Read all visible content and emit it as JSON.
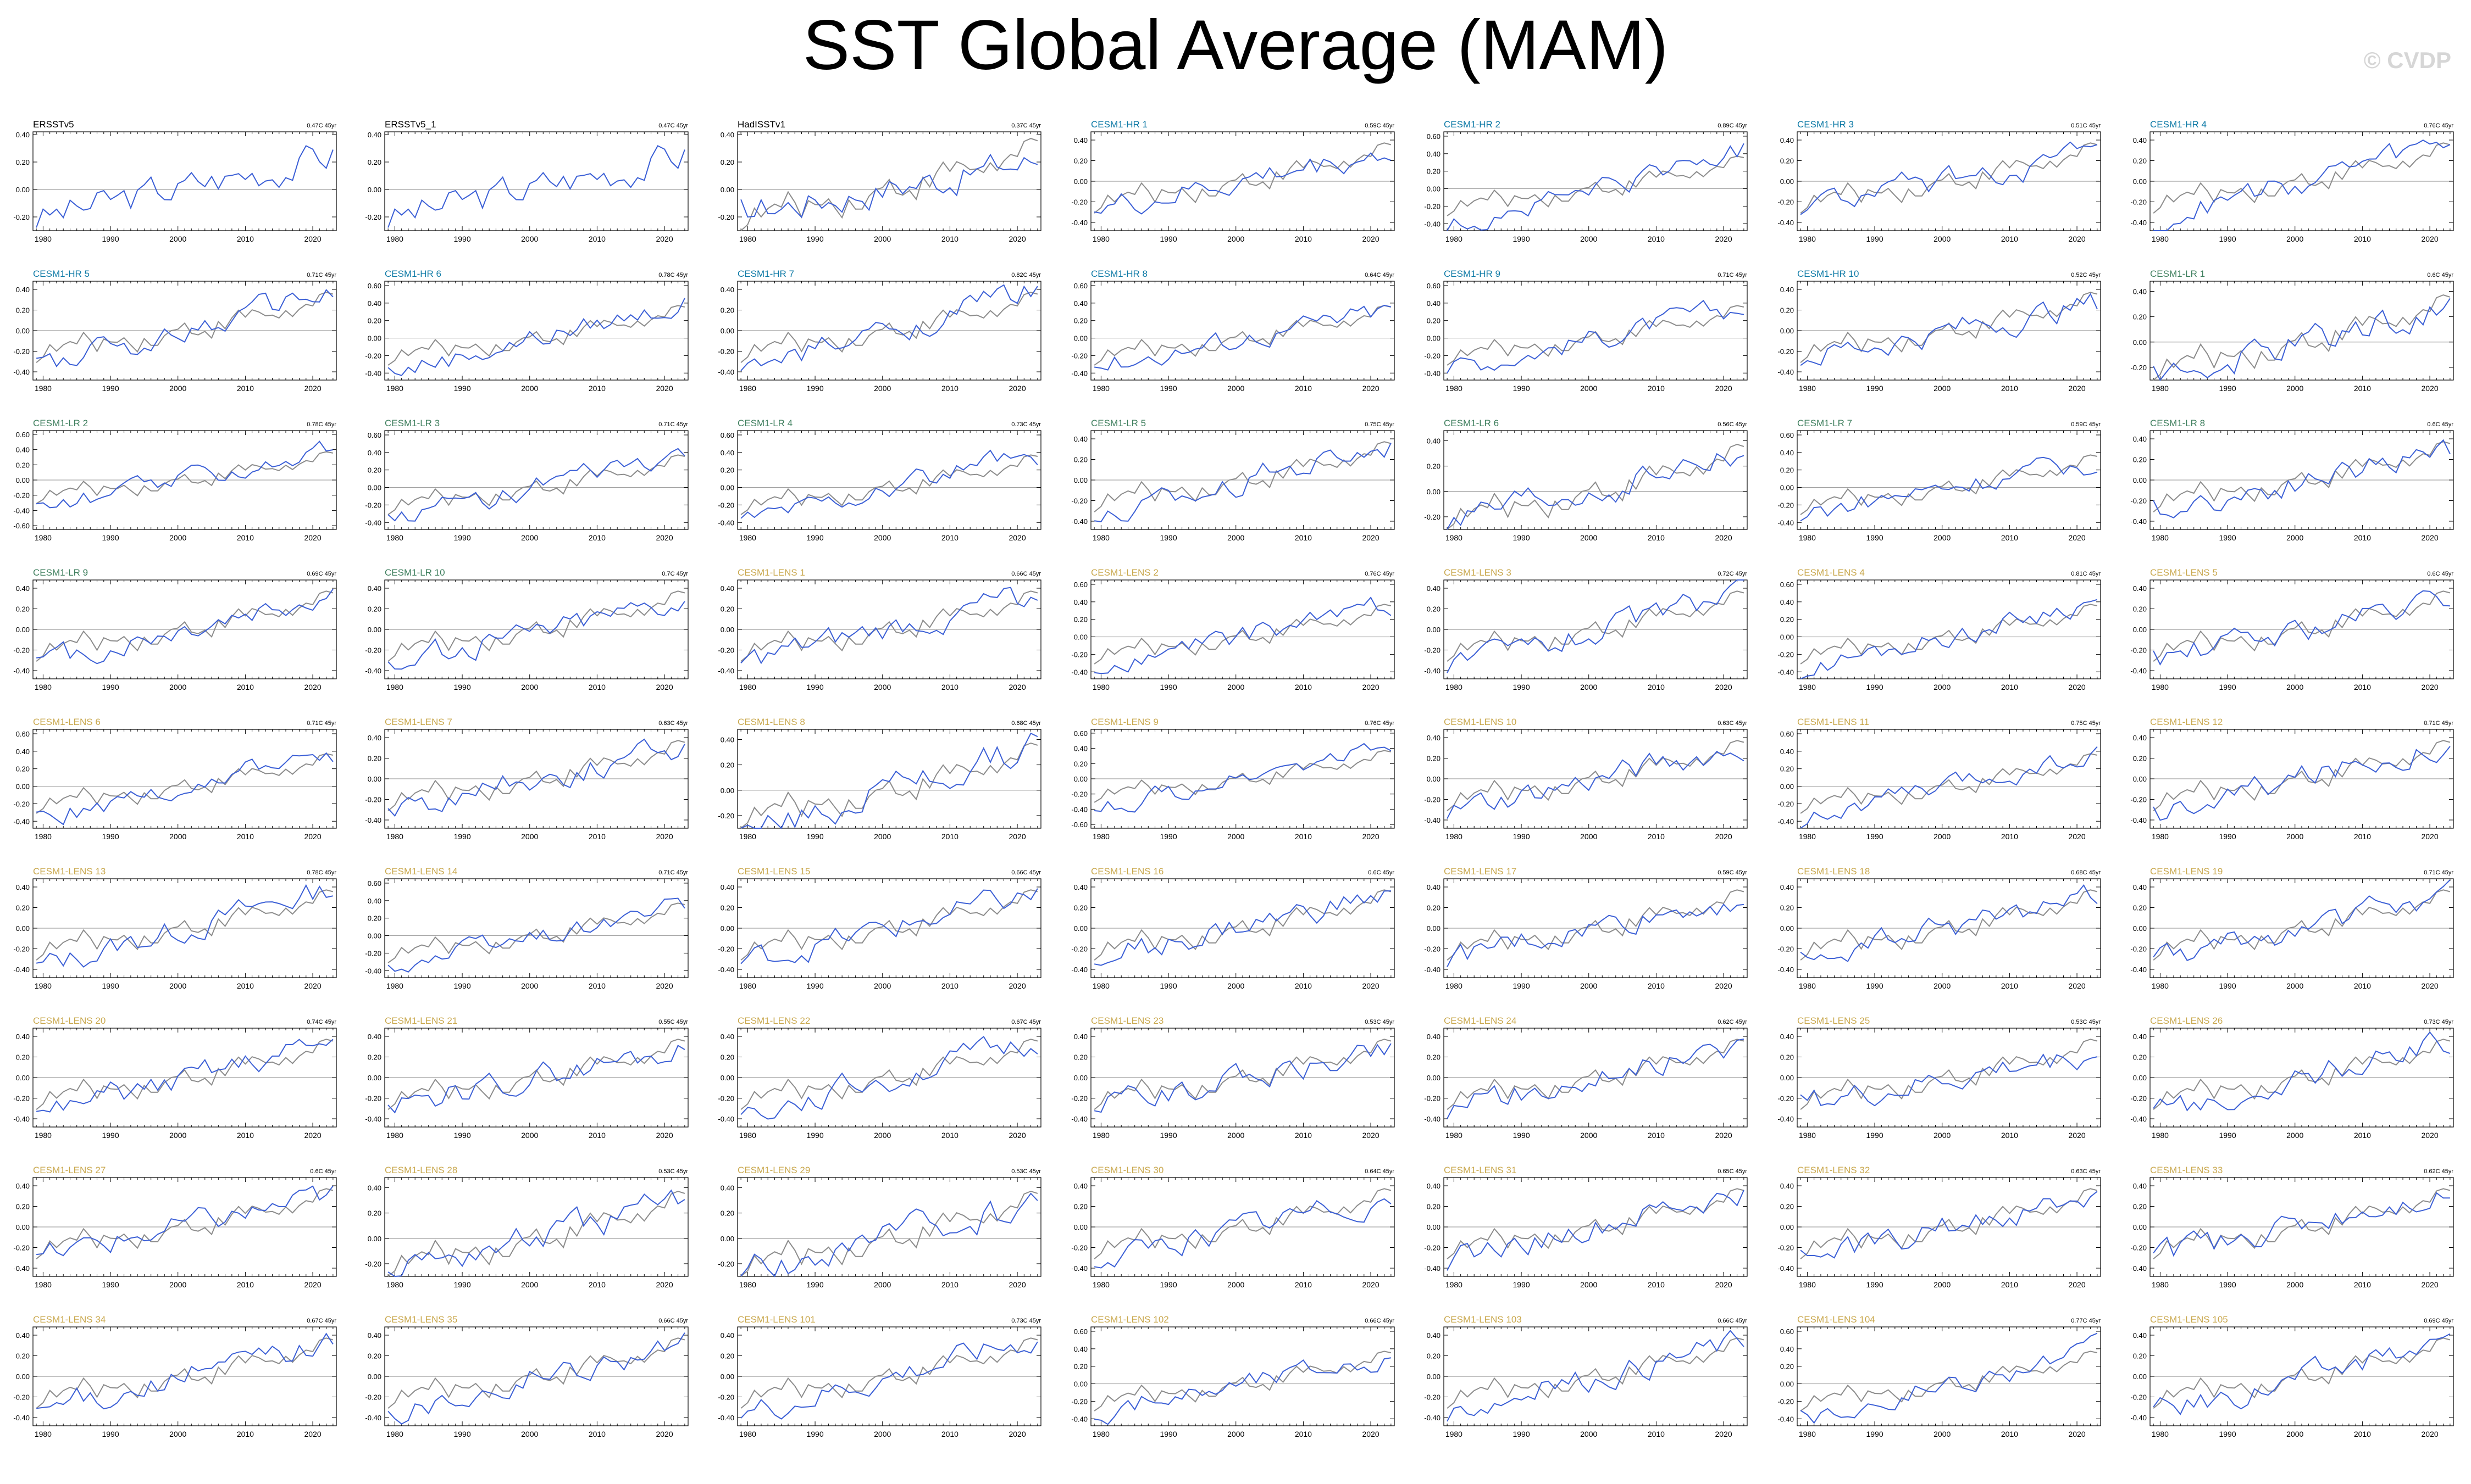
{
  "title": "SST Global Average (MAM)",
  "watermark": "© CVDP",
  "colors": {
    "model": "#3b5fd6",
    "obs": "#8c8c8c",
    "black": "#000000",
    "hr": "#0e7aa6",
    "lr": "#3f7f5e",
    "lens": "#c9a84e"
  },
  "chart_data": {
    "type": "line",
    "years": [
      1979,
      2023
    ],
    "x_ticks": [
      1980,
      1990,
      2000,
      2010,
      2020
    ],
    "panels": [
      {
        "name": "ERSSTv5",
        "trend": "0.47C 45yr",
        "ylim": [
          -0.3,
          0.42
        ],
        "yticks": [
          -0.2,
          0,
          0.2,
          0.4
        ],
        "group": "obs"
      },
      {
        "name": "ERSSTv5_1",
        "trend": "0.47C 45yr",
        "ylim": [
          -0.3,
          0.42
        ],
        "yticks": [
          -0.2,
          0,
          0.2,
          0.4
        ],
        "group": "obs"
      },
      {
        "name": "HadISSTv1",
        "trend": "0.37C 45yr",
        "ylim": [
          -0.3,
          0.42
        ],
        "yticks": [
          -0.2,
          0,
          0.2,
          0.4
        ],
        "group": "obs"
      },
      {
        "name": "CESM1-HR 1",
        "trend": "0.59C 45yr",
        "ylim": [
          -0.48,
          0.48
        ],
        "yticks": [
          -0.4,
          -0.2,
          0,
          0.2,
          0.4
        ],
        "group": "hr"
      },
      {
        "name": "CESM1-HR 2",
        "trend": "0.89C 45yr",
        "ylim": [
          -0.48,
          0.65
        ],
        "yticks": [
          -0.4,
          -0.2,
          0,
          0.2,
          0.4,
          0.6
        ],
        "group": "hr"
      },
      {
        "name": "CESM1-HR 3",
        "trend": "0.51C 45yr",
        "ylim": [
          -0.48,
          0.48
        ],
        "yticks": [
          -0.4,
          -0.2,
          0,
          0.2,
          0.4
        ],
        "group": "hr"
      },
      {
        "name": "CESM1-HR 4",
        "trend": "0.76C 45yr",
        "ylim": [
          -0.48,
          0.48
        ],
        "yticks": [
          -0.4,
          -0.2,
          0,
          0.2,
          0.4
        ],
        "group": "hr"
      },
      {
        "name": "CESM1-HR 5",
        "trend": "0.71C 45yr",
        "ylim": [
          -0.48,
          0.48
        ],
        "yticks": [
          -0.4,
          -0.2,
          0,
          0.2,
          0.4
        ],
        "group": "hr"
      },
      {
        "name": "CESM1-HR 6",
        "trend": "0.78C 45yr",
        "ylim": [
          -0.48,
          0.65
        ],
        "yticks": [
          -0.4,
          -0.2,
          0,
          0.2,
          0.4,
          0.6
        ],
        "group": "hr"
      },
      {
        "name": "CESM1-HR 7",
        "trend": "0.82C 45yr",
        "ylim": [
          -0.48,
          0.48
        ],
        "yticks": [
          -0.4,
          -0.2,
          0,
          0.2,
          0.4
        ],
        "group": "hr"
      },
      {
        "name": "CESM1-HR 8",
        "trend": "0.64C 45yr",
        "ylim": [
          -0.48,
          0.65
        ],
        "yticks": [
          -0.4,
          -0.2,
          0,
          0.2,
          0.4,
          0.6
        ],
        "group": "hr"
      },
      {
        "name": "CESM1-HR 9",
        "trend": "0.71C 45yr",
        "ylim": [
          -0.48,
          0.65
        ],
        "yticks": [
          -0.4,
          -0.2,
          0,
          0.2,
          0.4,
          0.6
        ],
        "group": "hr"
      },
      {
        "name": "CESM1-HR 10",
        "trend": "0.52C 45yr",
        "ylim": [
          -0.48,
          0.48
        ],
        "yticks": [
          -0.4,
          -0.2,
          0,
          0.2,
          0.4
        ],
        "group": "hr"
      },
      {
        "name": "CESM1-LR 1",
        "trend": "0.6C 45yr",
        "ylim": [
          -0.3,
          0.48
        ],
        "yticks": [
          -0.2,
          0,
          0.2,
          0.4
        ],
        "group": "lr"
      },
      {
        "name": "CESM1-LR 2",
        "trend": "0.78C 45yr",
        "ylim": [
          -0.65,
          0.65
        ],
        "yticks": [
          -0.6,
          -0.4,
          -0.2,
          0,
          0.2,
          0.4,
          0.6
        ],
        "group": "lr"
      },
      {
        "name": "CESM1-LR 3",
        "trend": "0.71C 45yr",
        "ylim": [
          -0.48,
          0.65
        ],
        "yticks": [
          -0.4,
          -0.2,
          0,
          0.2,
          0.4,
          0.6
        ],
        "group": "lr"
      },
      {
        "name": "CESM1-LR 4",
        "trend": "0.73C 45yr",
        "ylim": [
          -0.48,
          0.65
        ],
        "yticks": [
          -0.4,
          -0.2,
          0,
          0.2,
          0.4,
          0.6
        ],
        "group": "lr"
      },
      {
        "name": "CESM1-LR 5",
        "trend": "0.75C 45yr",
        "ylim": [
          -0.48,
          0.48
        ],
        "yticks": [
          -0.4,
          -0.2,
          0,
          0.2,
          0.4
        ],
        "group": "lr"
      },
      {
        "name": "CESM1-LR 6",
        "trend": "0.56C 45yr",
        "ylim": [
          -0.3,
          0.48
        ],
        "yticks": [
          -0.2,
          0,
          0.2,
          0.4
        ],
        "group": "lr"
      },
      {
        "name": "CESM1-LR 7",
        "trend": "0.59C 45yr",
        "ylim": [
          -0.48,
          0.65
        ],
        "yticks": [
          -0.4,
          -0.2,
          0,
          0.2,
          0.4,
          0.6
        ],
        "group": "lr"
      },
      {
        "name": "CESM1-LR 8",
        "trend": "0.6C 45yr",
        "ylim": [
          -0.48,
          0.48
        ],
        "yticks": [
          -0.4,
          -0.2,
          0,
          0.2,
          0.4
        ],
        "group": "lr"
      },
      {
        "name": "CESM1-LR 9",
        "trend": "0.69C 45yr",
        "ylim": [
          -0.48,
          0.48
        ],
        "yticks": [
          -0.4,
          -0.2,
          0,
          0.2,
          0.4
        ],
        "group": "lr"
      },
      {
        "name": "CESM1-LR 10",
        "trend": "0.7C 45yr",
        "ylim": [
          -0.48,
          0.48
        ],
        "yticks": [
          -0.4,
          -0.2,
          0,
          0.2,
          0.4
        ],
        "group": "lr"
      },
      {
        "name": "CESM1-LENS 1",
        "trend": "0.66C 45yr",
        "ylim": [
          -0.48,
          0.48
        ],
        "yticks": [
          -0.4,
          -0.2,
          0,
          0.2,
          0.4
        ],
        "group": "lens"
      },
      {
        "name": "CESM1-LENS 2",
        "trend": "0.76C 45yr",
        "ylim": [
          -0.48,
          0.65
        ],
        "yticks": [
          -0.4,
          -0.2,
          0,
          0.2,
          0.4,
          0.6
        ],
        "group": "lens"
      },
      {
        "name": "CESM1-LENS 3",
        "trend": "0.72C 45yr",
        "ylim": [
          -0.48,
          0.48
        ],
        "yticks": [
          -0.4,
          -0.2,
          0,
          0.2,
          0.4
        ],
        "group": "lens"
      },
      {
        "name": "CESM1-LENS 4",
        "trend": "0.81C 45yr",
        "ylim": [
          -0.48,
          0.65
        ],
        "yticks": [
          -0.4,
          -0.2,
          0,
          0.2,
          0.4,
          0.6
        ],
        "group": "lens"
      },
      {
        "name": "CESM1-LENS 5",
        "trend": "0.6C 45yr",
        "ylim": [
          -0.48,
          0.48
        ],
        "yticks": [
          -0.4,
          -0.2,
          0,
          0.2,
          0.4
        ],
        "group": "lens"
      },
      {
        "name": "CESM1-LENS 6",
        "trend": "0.71C 45yr",
        "ylim": [
          -0.48,
          0.65
        ],
        "yticks": [
          -0.4,
          -0.2,
          0,
          0.2,
          0.4,
          0.6
        ],
        "group": "lens"
      },
      {
        "name": "CESM1-LENS 7",
        "trend": "0.63C 45yr",
        "ylim": [
          -0.48,
          0.48
        ],
        "yticks": [
          -0.4,
          -0.2,
          0,
          0.2,
          0.4
        ],
        "group": "lens"
      },
      {
        "name": "CESM1-LENS 8",
        "trend": "0.68C 45yr",
        "ylim": [
          -0.3,
          0.48
        ],
        "yticks": [
          -0.2,
          0,
          0.2,
          0.4
        ],
        "group": "lens"
      },
      {
        "name": "CESM1-LENS 9",
        "trend": "0.76C 45yr",
        "ylim": [
          -0.65,
          0.65
        ],
        "yticks": [
          -0.6,
          -0.4,
          -0.2,
          0,
          0.2,
          0.4,
          0.6
        ],
        "group": "lens"
      },
      {
        "name": "CESM1-LENS 10",
        "trend": "0.63C 45yr",
        "ylim": [
          -0.48,
          0.48
        ],
        "yticks": [
          -0.4,
          -0.2,
          0,
          0.2,
          0.4
        ],
        "group": "lens"
      },
      {
        "name": "CESM1-LENS 11",
        "trend": "0.75C 45yr",
        "ylim": [
          -0.48,
          0.65
        ],
        "yticks": [
          -0.4,
          -0.2,
          0,
          0.2,
          0.4,
          0.6
        ],
        "group": "lens"
      },
      {
        "name": "CESM1-LENS 12",
        "trend": "0.71C 45yr",
        "ylim": [
          -0.48,
          0.48
        ],
        "yticks": [
          -0.4,
          -0.2,
          0,
          0.2,
          0.4
        ],
        "group": "lens"
      },
      {
        "name": "CESM1-LENS 13",
        "trend": "0.78C 45yr",
        "ylim": [
          -0.48,
          0.48
        ],
        "yticks": [
          -0.4,
          -0.2,
          0,
          0.2,
          0.4
        ],
        "group": "lens"
      },
      {
        "name": "CESM1-LENS 14",
        "trend": "0.71C 45yr",
        "ylim": [
          -0.48,
          0.65
        ],
        "yticks": [
          -0.4,
          -0.2,
          0,
          0.2,
          0.4,
          0.6
        ],
        "group": "lens"
      },
      {
        "name": "CESM1-LENS 15",
        "trend": "0.66C 45yr",
        "ylim": [
          -0.48,
          0.48
        ],
        "yticks": [
          -0.4,
          -0.2,
          0,
          0.2,
          0.4
        ],
        "group": "lens"
      },
      {
        "name": "CESM1-LENS 16",
        "trend": "0.6C 45yr",
        "ylim": [
          -0.48,
          0.48
        ],
        "yticks": [
          -0.4,
          -0.2,
          0,
          0.2,
          0.4
        ],
        "group": "lens"
      },
      {
        "name": "CESM1-LENS 17",
        "trend": "0.59C 45yr",
        "ylim": [
          -0.48,
          0.48
        ],
        "yticks": [
          -0.4,
          -0.2,
          0,
          0.2,
          0.4
        ],
        "group": "lens"
      },
      {
        "name": "CESM1-LENS 18",
        "trend": "0.68C 45yr",
        "ylim": [
          -0.48,
          0.48
        ],
        "yticks": [
          -0.4,
          -0.2,
          0,
          0.2,
          0.4
        ],
        "group": "lens"
      },
      {
        "name": "CESM1-LENS 19",
        "trend": "0.71C 45yr",
        "ylim": [
          -0.48,
          0.48
        ],
        "yticks": [
          -0.4,
          -0.2,
          0,
          0.2,
          0.4
        ],
        "group": "lens"
      },
      {
        "name": "CESM1-LENS 20",
        "trend": "0.74C 45yr",
        "ylim": [
          -0.48,
          0.48
        ],
        "yticks": [
          -0.4,
          -0.2,
          0,
          0.2,
          0.4
        ],
        "group": "lens"
      },
      {
        "name": "CESM1-LENS 21",
        "trend": "0.55C 45yr",
        "ylim": [
          -0.48,
          0.48
        ],
        "yticks": [
          -0.4,
          -0.2,
          0,
          0.2,
          0.4
        ],
        "group": "lens"
      },
      {
        "name": "CESM1-LENS 22",
        "trend": "0.67C 45yr",
        "ylim": [
          -0.48,
          0.48
        ],
        "yticks": [
          -0.4,
          -0.2,
          0,
          0.2,
          0.4
        ],
        "group": "lens"
      },
      {
        "name": "CESM1-LENS 23",
        "trend": "0.53C 45yr",
        "ylim": [
          -0.48,
          0.48
        ],
        "yticks": [
          -0.4,
          -0.2,
          0,
          0.2,
          0.4
        ],
        "group": "lens"
      },
      {
        "name": "CESM1-LENS 24",
        "trend": "0.62C 45yr",
        "ylim": [
          -0.48,
          0.48
        ],
        "yticks": [
          -0.4,
          -0.2,
          0,
          0.2,
          0.4
        ],
        "group": "lens"
      },
      {
        "name": "CESM1-LENS 25",
        "trend": "0.53C 45yr",
        "ylim": [
          -0.48,
          0.48
        ],
        "yticks": [
          -0.4,
          -0.2,
          0,
          0.2,
          0.4
        ],
        "group": "lens"
      },
      {
        "name": "CESM1-LENS 26",
        "trend": "0.73C 45yr",
        "ylim": [
          -0.48,
          0.48
        ],
        "yticks": [
          -0.4,
          -0.2,
          0,
          0.2,
          0.4
        ],
        "group": "lens"
      },
      {
        "name": "CESM1-LENS 27",
        "trend": "0.6C 45yr",
        "ylim": [
          -0.48,
          0.48
        ],
        "yticks": [
          -0.4,
          -0.2,
          0,
          0.2,
          0.4
        ],
        "group": "lens"
      },
      {
        "name": "CESM1-LENS 28",
        "trend": "0.53C 45yr",
        "ylim": [
          -0.3,
          0.48
        ],
        "yticks": [
          -0.2,
          0,
          0.2,
          0.4
        ],
        "group": "lens"
      },
      {
        "name": "CESM1-LENS 29",
        "trend": "0.53C 45yr",
        "ylim": [
          -0.3,
          0.48
        ],
        "yticks": [
          -0.2,
          0,
          0.2,
          0.4
        ],
        "group": "lens"
      },
      {
        "name": "CESM1-LENS 30",
        "trend": "0.64C 45yr",
        "ylim": [
          -0.48,
          0.48
        ],
        "yticks": [
          -0.4,
          -0.2,
          0,
          0.2,
          0.4
        ],
        "group": "lens"
      },
      {
        "name": "CESM1-LENS 31",
        "trend": "0.65C 45yr",
        "ylim": [
          -0.48,
          0.48
        ],
        "yticks": [
          -0.4,
          -0.2,
          0,
          0.2,
          0.4
        ],
        "group": "lens"
      },
      {
        "name": "CESM1-LENS 32",
        "trend": "0.63C 45yr",
        "ylim": [
          -0.48,
          0.48
        ],
        "yticks": [
          -0.4,
          -0.2,
          0,
          0.2,
          0.4
        ],
        "group": "lens"
      },
      {
        "name": "CESM1-LENS 33",
        "trend": "0.62C 45yr",
        "ylim": [
          -0.48,
          0.48
        ],
        "yticks": [
          -0.4,
          -0.2,
          0,
          0.2,
          0.4
        ],
        "group": "lens"
      },
      {
        "name": "CESM1-LENS 34",
        "trend": "0.67C 45yr",
        "ylim": [
          -0.48,
          0.48
        ],
        "yticks": [
          -0.4,
          -0.2,
          0,
          0.2,
          0.4
        ],
        "group": "lens"
      },
      {
        "name": "CESM1-LENS 35",
        "trend": "0.66C 45yr",
        "ylim": [
          -0.48,
          0.48
        ],
        "yticks": [
          -0.4,
          -0.2,
          0,
          0.2,
          0.4
        ],
        "group": "lens"
      },
      {
        "name": "CESM1-LENS 101",
        "trend": "0.73C 45yr",
        "ylim": [
          -0.48,
          0.48
        ],
        "yticks": [
          -0.4,
          -0.2,
          0,
          0.2,
          0.4
        ],
        "group": "lens"
      },
      {
        "name": "CESM1-LENS 102",
        "trend": "0.66C 45yr",
        "ylim": [
          -0.48,
          0.65
        ],
        "yticks": [
          -0.4,
          -0.2,
          0,
          0.2,
          0.4,
          0.6
        ],
        "group": "lens"
      },
      {
        "name": "CESM1-LENS 103",
        "trend": "0.66C 45yr",
        "ylim": [
          -0.48,
          0.48
        ],
        "yticks": [
          -0.4,
          -0.2,
          0,
          0.2,
          0.4
        ],
        "group": "lens"
      },
      {
        "name": "CESM1-LENS 104",
        "trend": "0.77C 45yr",
        "ylim": [
          -0.48,
          0.65
        ],
        "yticks": [
          -0.4,
          -0.2,
          0,
          0.2,
          0.4,
          0.6
        ],
        "group": "lens"
      },
      {
        "name": "CESM1-LENS 105",
        "trend": "0.69C 45yr",
        "ylim": [
          -0.48,
          0.48
        ],
        "yticks": [
          -0.4,
          -0.2,
          0,
          0.2,
          0.4
        ],
        "group": "lens"
      }
    ]
  }
}
